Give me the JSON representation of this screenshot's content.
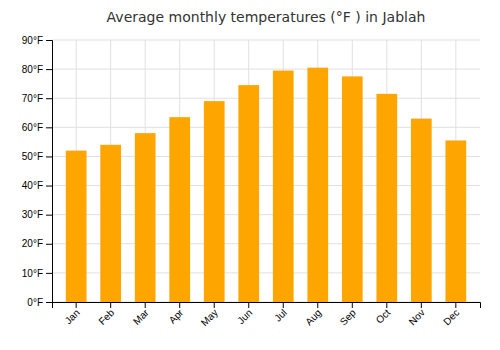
{
  "chart_data": {
    "type": "bar",
    "title": "Average monthly temperatures (°F ) in Jablah",
    "categories": [
      "Jan",
      "Feb",
      "Mar",
      "Apr",
      "May",
      "Jun",
      "Jul",
      "Aug",
      "Sep",
      "Oct",
      "Nov",
      "Dec"
    ],
    "values": [
      52,
      54,
      58,
      63.5,
      69,
      74.5,
      79.5,
      80.5,
      77.5,
      71.5,
      63,
      55.5
    ],
    "color": "#FFA500",
    "ylim": [
      0,
      90
    ],
    "yticks": [
      {
        "value": 0,
        "label": "0°F"
      },
      {
        "value": 10,
        "label": "10°F"
      },
      {
        "value": 20,
        "label": "20°F"
      },
      {
        "value": 30,
        "label": "30°F"
      },
      {
        "value": 40,
        "label": "40°F"
      },
      {
        "value": 50,
        "label": "50°F"
      },
      {
        "value": 60,
        "label": "60°F"
      },
      {
        "value": 70,
        "label": "70°F"
      },
      {
        "value": 80,
        "label": "80°F"
      },
      {
        "value": 90,
        "label": "90°F"
      }
    ],
    "grid": true
  }
}
